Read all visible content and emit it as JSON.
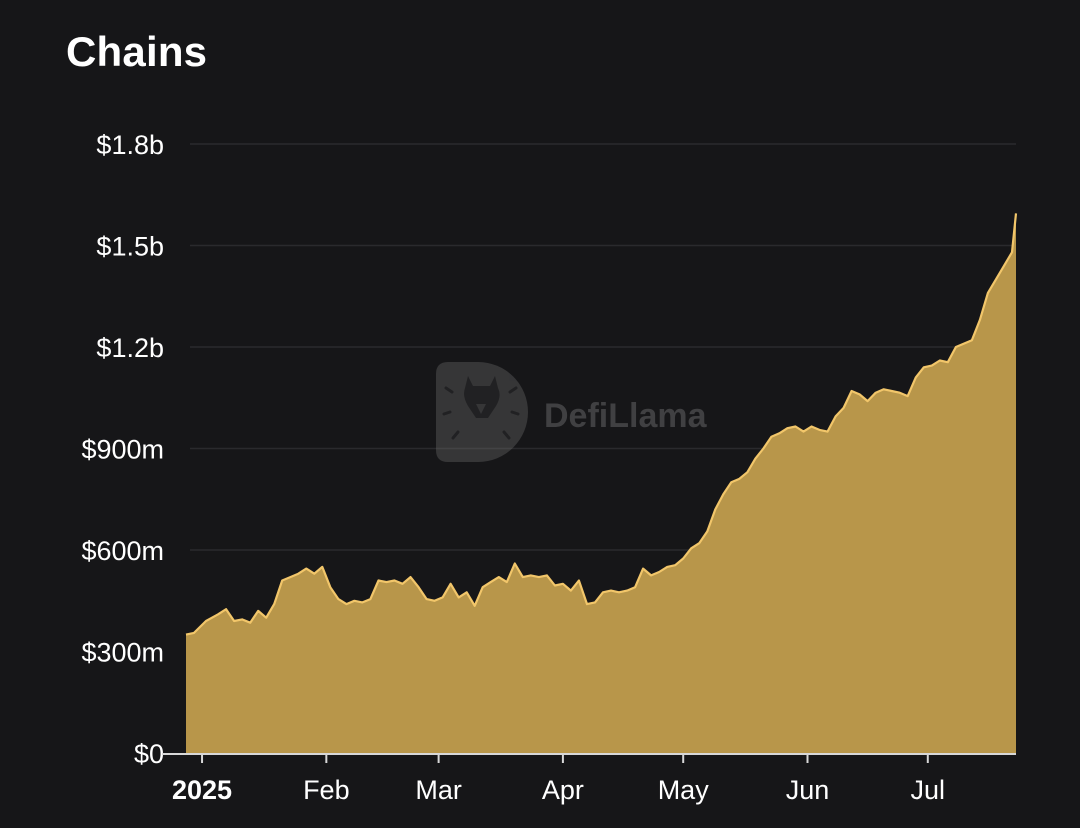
{
  "header": {
    "title": "Chains"
  },
  "watermark": {
    "text": "DefiLlama",
    "icon": "llama-logo-icon"
  },
  "colors": {
    "background": "#161618",
    "area_fill": "#B8964A",
    "area_line": "#F2C66A",
    "grid": "#2a2a2d"
  },
  "chart_data": {
    "type": "area",
    "title": "Chains",
    "xlabel": "",
    "ylabel": "",
    "ylim": [
      0,
      1800000000
    ],
    "y_ticks": [
      {
        "value": 0,
        "label": "$0"
      },
      {
        "value": 300000000,
        "label": "$300m"
      },
      {
        "value": 600000000,
        "label": "$600m"
      },
      {
        "value": 900000000,
        "label": "$900m"
      },
      {
        "value": 1200000000,
        "label": "$1.2b"
      },
      {
        "value": 1500000000,
        "label": "$1.5b"
      },
      {
        "value": 1800000000,
        "label": "$1.8b"
      }
    ],
    "x_ticks": [
      {
        "date": "2025-01-01",
        "label": "2025",
        "bold": true
      },
      {
        "date": "2025-02-01",
        "label": "Feb"
      },
      {
        "date": "2025-03-01",
        "label": "Mar"
      },
      {
        "date": "2025-04-01",
        "label": "Apr"
      },
      {
        "date": "2025-05-01",
        "label": "May"
      },
      {
        "date": "2025-06-01",
        "label": "Jun"
      },
      {
        "date": "2025-07-01",
        "label": "Jul"
      }
    ],
    "xlim": [
      "2024-12-28",
      "2025-07-23"
    ],
    "grid": true,
    "series": [
      {
        "values": [
          [
            "2024-12-28",
            350000000
          ],
          [
            "2024-12-30",
            355000000
          ],
          [
            "2025-01-02",
            390000000
          ],
          [
            "2025-01-05",
            410000000
          ],
          [
            "2025-01-07",
            425000000
          ],
          [
            "2025-01-09",
            390000000
          ],
          [
            "2025-01-11",
            395000000
          ],
          [
            "2025-01-13",
            385000000
          ],
          [
            "2025-01-15",
            420000000
          ],
          [
            "2025-01-17",
            400000000
          ],
          [
            "2025-01-19",
            440000000
          ],
          [
            "2025-01-21",
            510000000
          ],
          [
            "2025-01-23",
            520000000
          ],
          [
            "2025-01-25",
            530000000
          ],
          [
            "2025-01-27",
            545000000
          ],
          [
            "2025-01-29",
            530000000
          ],
          [
            "2025-01-31",
            550000000
          ],
          [
            "2025-02-02",
            490000000
          ],
          [
            "2025-02-04",
            455000000
          ],
          [
            "2025-02-06",
            440000000
          ],
          [
            "2025-02-08",
            450000000
          ],
          [
            "2025-02-10",
            445000000
          ],
          [
            "2025-02-12",
            455000000
          ],
          [
            "2025-02-14",
            510000000
          ],
          [
            "2025-02-16",
            505000000
          ],
          [
            "2025-02-18",
            510000000
          ],
          [
            "2025-02-20",
            500000000
          ],
          [
            "2025-02-22",
            520000000
          ],
          [
            "2025-02-24",
            490000000
          ],
          [
            "2025-02-26",
            455000000
          ],
          [
            "2025-02-28",
            450000000
          ],
          [
            "2025-03-02",
            460000000
          ],
          [
            "2025-03-04",
            500000000
          ],
          [
            "2025-03-06",
            460000000
          ],
          [
            "2025-03-08",
            475000000
          ],
          [
            "2025-03-10",
            435000000
          ],
          [
            "2025-03-12",
            490000000
          ],
          [
            "2025-03-14",
            505000000
          ],
          [
            "2025-03-16",
            520000000
          ],
          [
            "2025-03-18",
            505000000
          ],
          [
            "2025-03-20",
            560000000
          ],
          [
            "2025-03-22",
            520000000
          ],
          [
            "2025-03-24",
            525000000
          ],
          [
            "2025-03-26",
            520000000
          ],
          [
            "2025-03-28",
            525000000
          ],
          [
            "2025-03-30",
            495000000
          ],
          [
            "2025-04-01",
            500000000
          ],
          [
            "2025-04-03",
            480000000
          ],
          [
            "2025-04-05",
            510000000
          ],
          [
            "2025-04-07",
            440000000
          ],
          [
            "2025-04-09",
            445000000
          ],
          [
            "2025-04-11",
            475000000
          ],
          [
            "2025-04-13",
            480000000
          ],
          [
            "2025-04-15",
            475000000
          ],
          [
            "2025-04-17",
            480000000
          ],
          [
            "2025-04-19",
            490000000
          ],
          [
            "2025-04-21",
            545000000
          ],
          [
            "2025-04-23",
            525000000
          ],
          [
            "2025-04-25",
            535000000
          ],
          [
            "2025-04-27",
            550000000
          ],
          [
            "2025-04-29",
            555000000
          ],
          [
            "2025-05-01",
            575000000
          ],
          [
            "2025-05-03",
            605000000
          ],
          [
            "2025-05-05",
            620000000
          ],
          [
            "2025-05-07",
            655000000
          ],
          [
            "2025-05-09",
            720000000
          ],
          [
            "2025-05-11",
            765000000
          ],
          [
            "2025-05-13",
            800000000
          ],
          [
            "2025-05-15",
            810000000
          ],
          [
            "2025-05-17",
            830000000
          ],
          [
            "2025-05-19",
            870000000
          ],
          [
            "2025-05-21",
            900000000
          ],
          [
            "2025-05-23",
            935000000
          ],
          [
            "2025-05-25",
            945000000
          ],
          [
            "2025-05-27",
            960000000
          ],
          [
            "2025-05-29",
            965000000
          ],
          [
            "2025-05-31",
            950000000
          ],
          [
            "2025-06-02",
            965000000
          ],
          [
            "2025-06-04",
            955000000
          ],
          [
            "2025-06-06",
            950000000
          ],
          [
            "2025-06-08",
            995000000
          ],
          [
            "2025-06-10",
            1020000000
          ],
          [
            "2025-06-12",
            1070000000
          ],
          [
            "2025-06-14",
            1060000000
          ],
          [
            "2025-06-16",
            1040000000
          ],
          [
            "2025-06-18",
            1065000000
          ],
          [
            "2025-06-20",
            1075000000
          ],
          [
            "2025-06-22",
            1070000000
          ],
          [
            "2025-06-24",
            1065000000
          ],
          [
            "2025-06-26",
            1055000000
          ],
          [
            "2025-06-28",
            1110000000
          ],
          [
            "2025-06-30",
            1140000000
          ],
          [
            "2025-07-02",
            1145000000
          ],
          [
            "2025-07-04",
            1160000000
          ],
          [
            "2025-07-06",
            1155000000
          ],
          [
            "2025-07-08",
            1200000000
          ],
          [
            "2025-07-10",
            1210000000
          ],
          [
            "2025-07-12",
            1220000000
          ],
          [
            "2025-07-14",
            1280000000
          ],
          [
            "2025-07-16",
            1360000000
          ],
          [
            "2025-07-18",
            1400000000
          ],
          [
            "2025-07-20",
            1440000000
          ],
          [
            "2025-07-21",
            1460000000
          ],
          [
            "2025-07-22",
            1480000000
          ],
          [
            "2025-07-23",
            1595000000
          ]
        ]
      }
    ]
  }
}
